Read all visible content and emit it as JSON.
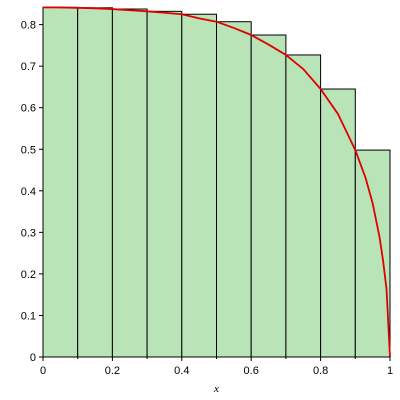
{
  "chart_data": {
    "type": "bar",
    "xlabel": "x",
    "ylabel": "",
    "xlim": [
      0,
      1
    ],
    "ylim": [
      0,
      0.84
    ],
    "x_ticks": [
      "0",
      "0.2",
      "0.4",
      "0.6",
      "0.8",
      "1"
    ],
    "y_ticks": [
      "0",
      "0.1",
      "0.2",
      "0.3",
      "0.4",
      "0.5",
      "0.6",
      "0.7",
      "0.8"
    ],
    "bars": {
      "x_left": [
        0,
        0.1,
        0.2,
        0.3,
        0.4,
        0.5,
        0.6,
        0.7,
        0.8,
        0.9
      ],
      "width": 0.1,
      "values": [
        0.8415,
        0.8405,
        0.8375,
        0.832,
        0.825,
        0.807,
        0.775,
        0.727,
        0.645,
        0.498
      ],
      "fill": "#b8e4b8",
      "stroke": "#000000"
    },
    "curve": {
      "color": "#e00000",
      "x": [
        0,
        0.05,
        0.1,
        0.15,
        0.2,
        0.25,
        0.3,
        0.35,
        0.4,
        0.45,
        0.5,
        0.55,
        0.6,
        0.65,
        0.7,
        0.75,
        0.8,
        0.85,
        0.9,
        0.93,
        0.95,
        0.97,
        0.98,
        0.99,
        1.0
      ],
      "y": [
        0.8415,
        0.8414,
        0.8405,
        0.8392,
        0.8375,
        0.8346,
        0.832,
        0.8285,
        0.825,
        0.815,
        0.807,
        0.792,
        0.775,
        0.752,
        0.727,
        0.693,
        0.645,
        0.585,
        0.498,
        0.43,
        0.37,
        0.288,
        0.232,
        0.163,
        0.0
      ]
    }
  }
}
